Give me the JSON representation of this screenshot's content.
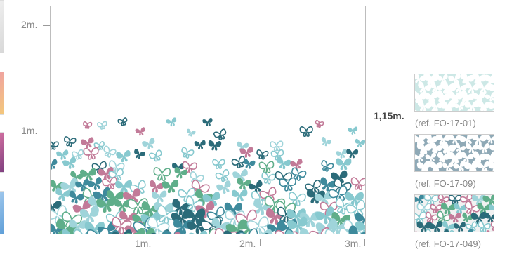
{
  "left_strip": {
    "thumbs": [
      {
        "name": "thumb-1",
        "colors": [
          "#eeeeee",
          "#d8d8d8"
        ]
      },
      {
        "name": "thumb-2",
        "colors": [
          "#f0a3a0",
          "#f3c87b"
        ]
      },
      {
        "name": "thumb-3",
        "colors": [
          "#d06fa0",
          "#7f3f7f"
        ]
      },
      {
        "name": "thumb-4",
        "colors": [
          "#9fc7ec",
          "#5f9fd8"
        ]
      }
    ]
  },
  "axis": {
    "y_labels": [
      "2m.",
      "1m."
    ],
    "x_labels": [
      "1m.",
      "2m.",
      "3m."
    ]
  },
  "marker": {
    "label": "1,15m."
  },
  "palette": [
    "#2b6b79",
    "#3e8a9c",
    "#87c9cf",
    "#c27a98",
    "#5fae8a",
    "#9fd4da"
  ],
  "references": [
    {
      "label": "(ref. FO-17-01)",
      "bg": "#cde8e6",
      "fg": "#ffffff"
    },
    {
      "label": "(ref. FO-17-09)",
      "bg": "#8fa9b6",
      "fg": "#ffffff"
    },
    {
      "label": "(ref. FO-17-049)",
      "bg": "#f2f2f2",
      "fg": "#3d6e7a"
    }
  ]
}
